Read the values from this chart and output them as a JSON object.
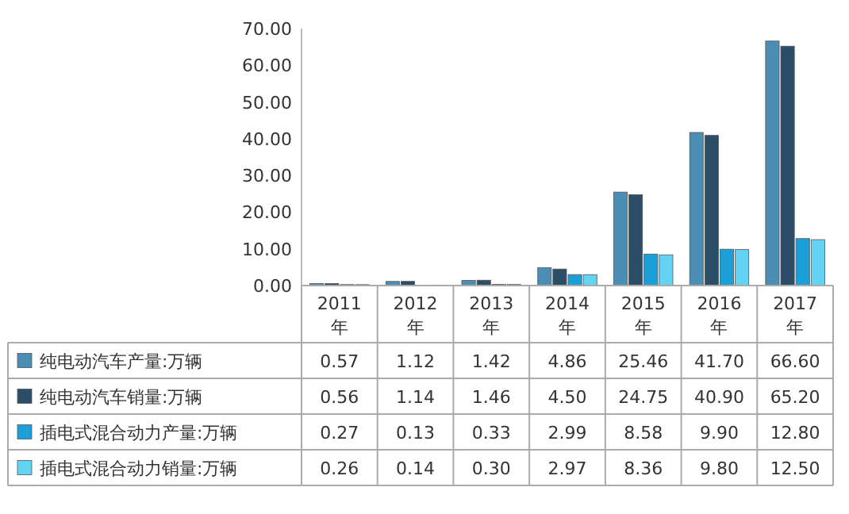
{
  "chart_data": {
    "type": "bar",
    "categories": [
      "2011年",
      "2012年",
      "2013年",
      "2014年",
      "2015年",
      "2016年",
      "2017年"
    ],
    "series": [
      {
        "name": "纯电动汽车产量:万辆",
        "color": "#4a8db5",
        "values": [
          0.57,
          1.12,
          1.42,
          4.86,
          25.46,
          41.7,
          66.6
        ],
        "value_labels": [
          "0.57",
          "1.12",
          "1.42",
          "4.86",
          "25.46",
          "41.70",
          "66.60"
        ]
      },
      {
        "name": "纯电动汽车销量:万辆",
        "color": "#2b4d68",
        "values": [
          0.56,
          1.14,
          1.46,
          4.5,
          24.75,
          40.9,
          65.2
        ],
        "value_labels": [
          "0.56",
          "1.14",
          "1.46",
          "4.50",
          "24.75",
          "40.90",
          "65.20"
        ]
      },
      {
        "name": "插电式混合动力产量:万辆",
        "color": "#1b9fd8",
        "values": [
          0.27,
          0.13,
          0.33,
          2.99,
          8.58,
          9.9,
          12.8
        ],
        "value_labels": [
          "0.27",
          "0.13",
          "0.33",
          "2.99",
          "8.58",
          "9.90",
          "12.80"
        ]
      },
      {
        "name": "插电式混合动力销量:万辆",
        "color": "#62d3f3",
        "values": [
          0.26,
          0.14,
          0.3,
          2.97,
          8.36,
          9.8,
          12.5
        ],
        "value_labels": [
          "0.26",
          "0.14",
          "0.30",
          "2.97",
          "8.36",
          "9.80",
          "12.50"
        ]
      }
    ],
    "ylim": [
      0,
      70
    ],
    "yticks": [
      {
        "value": 0,
        "label": "0.00"
      },
      {
        "value": 10,
        "label": "10.00"
      },
      {
        "value": 20,
        "label": "20.00"
      },
      {
        "value": 30,
        "label": "30.00"
      },
      {
        "value": 40,
        "label": "40.00"
      },
      {
        "value": 50,
        "label": "50.00"
      },
      {
        "value": 60,
        "label": "60.00"
      },
      {
        "value": 70,
        "label": "70.00"
      }
    ],
    "legend": "bottom",
    "grid": false
  }
}
